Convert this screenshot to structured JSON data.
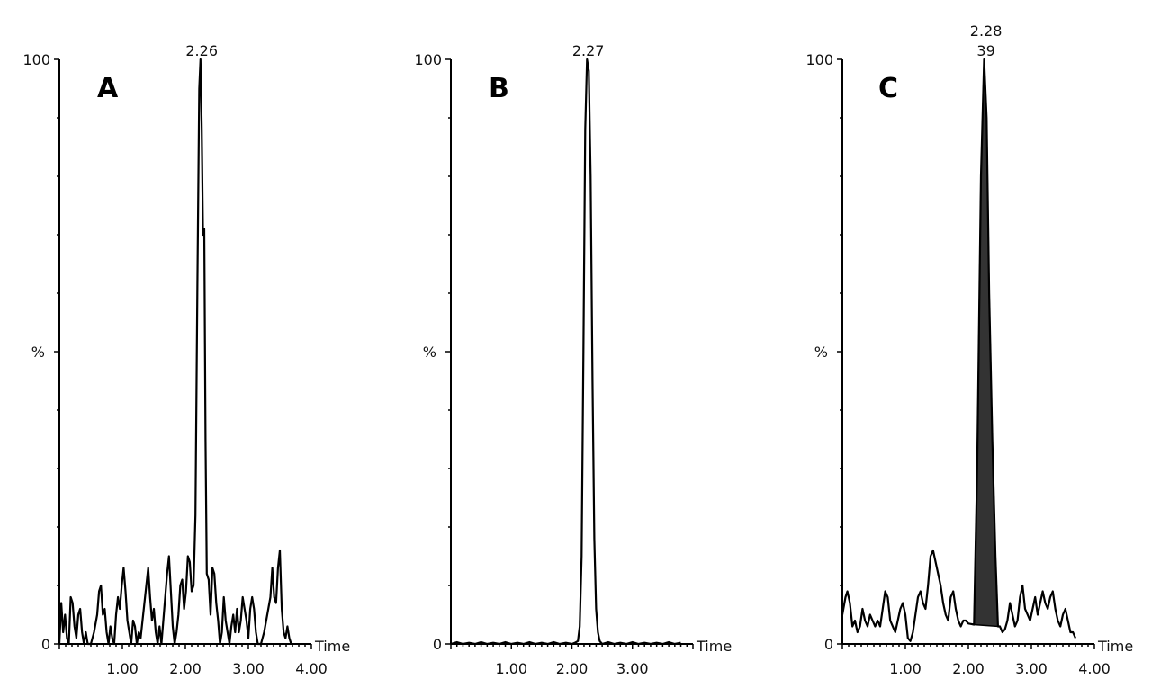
{
  "chart_data": [
    {
      "type": "line",
      "panel_label": "A",
      "xlabel": "Time",
      "ylabel": "%",
      "xlim": [
        0,
        4.0
      ],
      "ylim": [
        0,
        100
      ],
      "x_tick_labels": [
        "1.00",
        "2.00",
        "3.00",
        "4.00"
      ],
      "y_tick_labels": [
        "0",
        "100"
      ],
      "peak_labels": [
        {
          "x": 2.26,
          "y": 100,
          "lines": [
            "2.26"
          ]
        }
      ],
      "series": [
        {
          "points": [
            [
              0.0,
              0
            ],
            [
              0.03,
              7
            ],
            [
              0.06,
              2
            ],
            [
              0.09,
              5
            ],
            [
              0.12,
              1
            ],
            [
              0.15,
              0
            ],
            [
              0.18,
              8
            ],
            [
              0.21,
              7
            ],
            [
              0.24,
              3
            ],
            [
              0.27,
              1
            ],
            [
              0.3,
              5
            ],
            [
              0.33,
              6
            ],
            [
              0.36,
              2
            ],
            [
              0.39,
              0
            ],
            [
              0.42,
              2
            ],
            [
              0.45,
              0
            ],
            [
              0.5,
              0
            ],
            [
              0.55,
              2
            ],
            [
              0.6,
              5
            ],
            [
              0.63,
              9
            ],
            [
              0.66,
              10
            ],
            [
              0.69,
              5
            ],
            [
              0.72,
              6
            ],
            [
              0.75,
              2
            ],
            [
              0.78,
              0
            ],
            [
              0.81,
              3
            ],
            [
              0.84,
              1
            ],
            [
              0.87,
              0
            ],
            [
              0.9,
              5
            ],
            [
              0.93,
              8
            ],
            [
              0.96,
              6
            ],
            [
              0.99,
              10
            ],
            [
              1.02,
              13
            ],
            [
              1.05,
              9
            ],
            [
              1.08,
              4
            ],
            [
              1.11,
              2
            ],
            [
              1.14,
              0
            ],
            [
              1.17,
              4
            ],
            [
              1.2,
              3
            ],
            [
              1.23,
              0
            ],
            [
              1.26,
              2
            ],
            [
              1.29,
              1
            ],
            [
              1.32,
              4
            ],
            [
              1.35,
              7
            ],
            [
              1.38,
              10
            ],
            [
              1.41,
              13
            ],
            [
              1.44,
              8
            ],
            [
              1.47,
              4
            ],
            [
              1.5,
              6
            ],
            [
              1.53,
              2
            ],
            [
              1.56,
              0
            ],
            [
              1.59,
              3
            ],
            [
              1.62,
              0
            ],
            [
              1.65,
              4
            ],
            [
              1.68,
              8
            ],
            [
              1.71,
              12
            ],
            [
              1.74,
              15
            ],
            [
              1.77,
              9
            ],
            [
              1.8,
              3
            ],
            [
              1.83,
              0
            ],
            [
              1.86,
              2
            ],
            [
              1.89,
              5
            ],
            [
              1.92,
              10
            ],
            [
              1.95,
              11
            ],
            [
              1.98,
              6
            ],
            [
              2.01,
              9
            ],
            [
              2.04,
              15
            ],
            [
              2.07,
              14
            ],
            [
              2.1,
              9
            ],
            [
              2.13,
              10
            ],
            [
              2.16,
              22
            ],
            [
              2.19,
              60
            ],
            [
              2.22,
              95
            ],
            [
              2.24,
              100
            ],
            [
              2.26,
              88
            ],
            [
              2.28,
              70
            ],
            [
              2.3,
              71
            ],
            [
              2.32,
              35
            ],
            [
              2.34,
              12
            ],
            [
              2.37,
              11
            ],
            [
              2.4,
              5
            ],
            [
              2.43,
              13
            ],
            [
              2.46,
              12
            ],
            [
              2.49,
              7
            ],
            [
              2.52,
              4
            ],
            [
              2.55,
              0
            ],
            [
              2.58,
              2
            ],
            [
              2.61,
              8
            ],
            [
              2.64,
              4
            ],
            [
              2.67,
              2
            ],
            [
              2.7,
              0
            ],
            [
              2.73,
              3
            ],
            [
              2.76,
              5
            ],
            [
              2.79,
              2
            ],
            [
              2.82,
              6
            ],
            [
              2.85,
              2
            ],
            [
              2.88,
              4
            ],
            [
              2.91,
              8
            ],
            [
              2.94,
              6
            ],
            [
              2.97,
              4
            ],
            [
              3.0,
              1
            ],
            [
              3.03,
              6
            ],
            [
              3.06,
              8
            ],
            [
              3.09,
              6
            ],
            [
              3.12,
              2
            ],
            [
              3.15,
              0
            ],
            [
              3.2,
              0
            ],
            [
              3.25,
              2
            ],
            [
              3.3,
              5
            ],
            [
              3.35,
              8
            ],
            [
              3.38,
              13
            ],
            [
              3.41,
              8
            ],
            [
              3.44,
              7
            ],
            [
              3.47,
              13
            ],
            [
              3.5,
              16
            ],
            [
              3.53,
              6
            ],
            [
              3.56,
              2
            ],
            [
              3.59,
              1
            ],
            [
              3.62,
              3
            ],
            [
              3.65,
              1
            ],
            [
              3.68,
              0
            ]
          ]
        }
      ]
    },
    {
      "type": "line",
      "panel_label": "B",
      "xlabel": "Time",
      "ylabel": "%",
      "xlim": [
        0,
        4.0
      ],
      "ylim": [
        0,
        100
      ],
      "x_tick_labels": [
        "1.00",
        "2.00",
        "3.00"
      ],
      "y_tick_labels": [
        "0",
        "100"
      ],
      "peak_labels": [
        {
          "x": 2.27,
          "y": 100,
          "lines": [
            "2.27"
          ]
        }
      ],
      "series": [
        {
          "points": [
            [
              0.0,
              0
            ],
            [
              0.1,
              0.3
            ],
            [
              0.2,
              0
            ],
            [
              0.3,
              0.2
            ],
            [
              0.4,
              0
            ],
            [
              0.5,
              0.3
            ],
            [
              0.6,
              0
            ],
            [
              0.7,
              0.2
            ],
            [
              0.8,
              0
            ],
            [
              0.9,
              0.3
            ],
            [
              1.0,
              0
            ],
            [
              1.1,
              0.2
            ],
            [
              1.2,
              0
            ],
            [
              1.3,
              0.3
            ],
            [
              1.4,
              0
            ],
            [
              1.5,
              0.2
            ],
            [
              1.6,
              0
            ],
            [
              1.7,
              0.3
            ],
            [
              1.8,
              0
            ],
            [
              1.9,
              0.2
            ],
            [
              2.0,
              0
            ],
            [
              2.05,
              0.2
            ],
            [
              2.1,
              0.5
            ],
            [
              2.13,
              3
            ],
            [
              2.16,
              15
            ],
            [
              2.19,
              50
            ],
            [
              2.22,
              88
            ],
            [
              2.25,
              100
            ],
            [
              2.28,
              98
            ],
            [
              2.31,
              80
            ],
            [
              2.34,
              45
            ],
            [
              2.37,
              18
            ],
            [
              2.4,
              6
            ],
            [
              2.43,
              2
            ],
            [
              2.46,
              0.5
            ],
            [
              2.5,
              0
            ],
            [
              2.6,
              0.3
            ],
            [
              2.7,
              0
            ],
            [
              2.8,
              0.2
            ],
            [
              2.9,
              0
            ],
            [
              3.0,
              0.3
            ],
            [
              3.1,
              0
            ],
            [
              3.2,
              0.2
            ],
            [
              3.3,
              0
            ],
            [
              3.4,
              0.2
            ],
            [
              3.5,
              0
            ],
            [
              3.6,
              0.3
            ],
            [
              3.7,
              0
            ],
            [
              3.8,
              0.2
            ]
          ]
        }
      ]
    },
    {
      "type": "area",
      "panel_label": "C",
      "xlabel": "Time",
      "ylabel": "%",
      "xlim": [
        0,
        4.0
      ],
      "ylim": [
        0,
        100
      ],
      "x_tick_labels": [
        "1.00",
        "2.00",
        "3.00",
        "4.00"
      ],
      "y_tick_labels": [
        "0",
        "100"
      ],
      "peak_labels": [
        {
          "x": 2.28,
          "y": 100,
          "lines": [
            "2.28",
            "39"
          ]
        }
      ],
      "shaded_region": {
        "x_start": 2.09,
        "x_end": 2.47,
        "base_start": 3.3,
        "base_end": 3.0,
        "color": "#333333"
      },
      "series": [
        {
          "points": [
            [
              0.0,
              5
            ],
            [
              0.05,
              8
            ],
            [
              0.08,
              9
            ],
            [
              0.12,
              7
            ],
            [
              0.16,
              3
            ],
            [
              0.2,
              4
            ],
            [
              0.24,
              2
            ],
            [
              0.28,
              3
            ],
            [
              0.32,
              6
            ],
            [
              0.36,
              4
            ],
            [
              0.4,
              3
            ],
            [
              0.44,
              5
            ],
            [
              0.48,
              4
            ],
            [
              0.52,
              3
            ],
            [
              0.56,
              4
            ],
            [
              0.6,
              3
            ],
            [
              0.64,
              6
            ],
            [
              0.68,
              9
            ],
            [
              0.72,
              8
            ],
            [
              0.76,
              4
            ],
            [
              0.8,
              3
            ],
            [
              0.84,
              2
            ],
            [
              0.88,
              4
            ],
            [
              0.92,
              6
            ],
            [
              0.96,
              7
            ],
            [
              1.0,
              5
            ],
            [
              1.04,
              1
            ],
            [
              1.08,
              0.5
            ],
            [
              1.12,
              2
            ],
            [
              1.16,
              5
            ],
            [
              1.2,
              8
            ],
            [
              1.24,
              9
            ],
            [
              1.28,
              7
            ],
            [
              1.32,
              6
            ],
            [
              1.36,
              10
            ],
            [
              1.4,
              15
            ],
            [
              1.44,
              16
            ],
            [
              1.48,
              14
            ],
            [
              1.52,
              12
            ],
            [
              1.56,
              10
            ],
            [
              1.6,
              7
            ],
            [
              1.64,
              5
            ],
            [
              1.68,
              4
            ],
            [
              1.72,
              8
            ],
            [
              1.76,
              9
            ],
            [
              1.8,
              6
            ],
            [
              1.84,
              4
            ],
            [
              1.88,
              3
            ],
            [
              1.92,
              4
            ],
            [
              1.96,
              4
            ],
            [
              2.0,
              3.5
            ],
            [
              2.05,
              3.4
            ],
            [
              2.09,
              3.3
            ],
            [
              2.14,
              30
            ],
            [
              2.2,
              80
            ],
            [
              2.25,
              100
            ],
            [
              2.29,
              90
            ],
            [
              2.33,
              60
            ],
            [
              2.38,
              35
            ],
            [
              2.43,
              15
            ],
            [
              2.47,
              3.0
            ],
            [
              2.5,
              3
            ],
            [
              2.54,
              2
            ],
            [
              2.58,
              2.5
            ],
            [
              2.62,
              4
            ],
            [
              2.66,
              7
            ],
            [
              2.7,
              5
            ],
            [
              2.74,
              3
            ],
            [
              2.78,
              4
            ],
            [
              2.82,
              8
            ],
            [
              2.86,
              10
            ],
            [
              2.9,
              6
            ],
            [
              2.94,
              5
            ],
            [
              2.98,
              4
            ],
            [
              3.02,
              6
            ],
            [
              3.06,
              8
            ],
            [
              3.1,
              5
            ],
            [
              3.14,
              7
            ],
            [
              3.18,
              9
            ],
            [
              3.22,
              7
            ],
            [
              3.26,
              6
            ],
            [
              3.3,
              8
            ],
            [
              3.34,
              9
            ],
            [
              3.38,
              6
            ],
            [
              3.42,
              4
            ],
            [
              3.46,
              3
            ],
            [
              3.5,
              5
            ],
            [
              3.54,
              6
            ],
            [
              3.58,
              4
            ],
            [
              3.62,
              2
            ],
            [
              3.66,
              2
            ],
            [
              3.7,
              1
            ]
          ]
        }
      ]
    }
  ]
}
